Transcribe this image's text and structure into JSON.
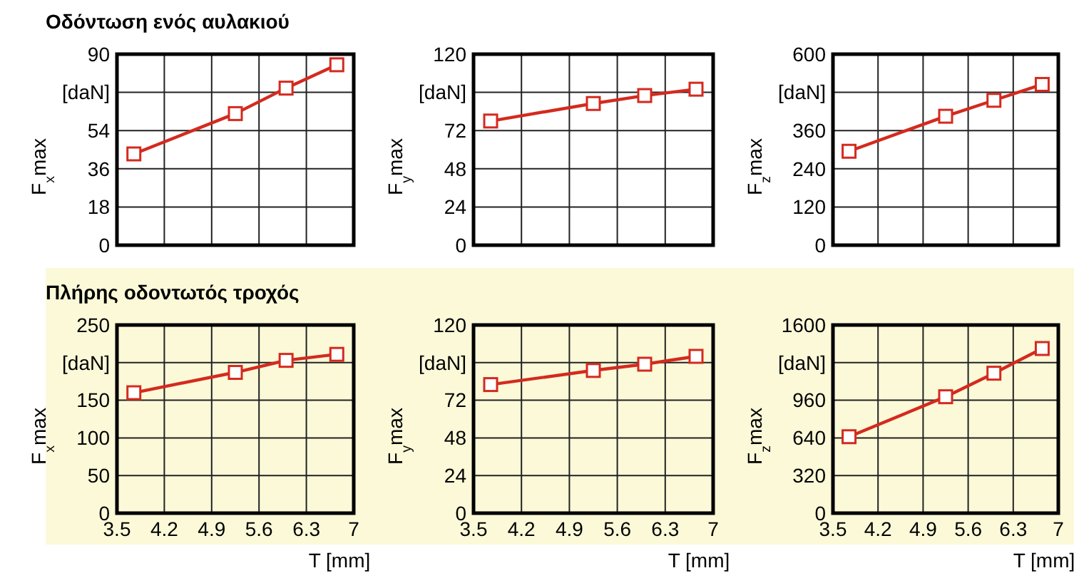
{
  "chart_data": [
    {
      "type": "line",
      "title": "Οδόντωση ενός αυλακιού",
      "ylabel": "F$_{x}$max",
      "x": [
        3.75,
        5.25,
        6.0,
        6.75
      ],
      "series": [
        {
          "color": "#d42a1f",
          "values": [
            43,
            62,
            74,
            85
          ]
        }
      ],
      "xlim": [
        3.5,
        7
      ],
      "xticks": [
        3.5,
        4.2,
        4.9,
        5.6,
        6.3,
        7
      ],
      "ylim": [
        0,
        90
      ],
      "yticks": [
        0,
        18,
        36,
        54,
        {
          "value": 72,
          "label": "[daN]"
        },
        90
      ],
      "grid": true,
      "marker": "square",
      "tick_labels": "y"
    },
    {
      "type": "line",
      "ylabel": "F$_{y}$max",
      "x": [
        3.75,
        5.25,
        6.0,
        6.75
      ],
      "series": [
        {
          "color": "#d42a1f",
          "values": [
            78,
            89,
            94,
            98
          ]
        }
      ],
      "xlim": [
        3.5,
        7
      ],
      "xticks": [
        3.5,
        4.2,
        4.9,
        5.6,
        6.3,
        7
      ],
      "ylim": [
        0,
        120
      ],
      "yticks": [
        0,
        24,
        48,
        72,
        {
          "value": 96,
          "label": "[daN]"
        },
        120
      ],
      "grid": true,
      "marker": "square",
      "tick_labels": "y"
    },
    {
      "type": "line",
      "ylabel": "F$_{z}$max",
      "x": [
        3.75,
        5.25,
        6.0,
        6.75
      ],
      "series": [
        {
          "color": "#d42a1f",
          "values": [
            295,
            405,
            455,
            505
          ]
        }
      ],
      "xlim": [
        3.5,
        7
      ],
      "xticks": [
        3.5,
        4.2,
        4.9,
        5.6,
        6.3,
        7
      ],
      "ylim": [
        0,
        600
      ],
      "yticks": [
        0,
        120,
        240,
        360,
        {
          "value": 480,
          "label": "[daN]"
        },
        600
      ],
      "grid": true,
      "marker": "square",
      "tick_labels": "y"
    },
    {
      "type": "line",
      "title": "Πλήρης οδοντωτός τροχός",
      "xlabel": "T [mm]",
      "ylabel": "F$_{x}$max",
      "x": [
        3.75,
        5.25,
        6.0,
        6.75
      ],
      "series": [
        {
          "color": "#d42a1f",
          "values": [
            160,
            187,
            203,
            211
          ]
        }
      ],
      "xlim": [
        3.5,
        7
      ],
      "xticks": [
        3.5,
        4.2,
        4.9,
        5.6,
        6.3,
        7
      ],
      "ylim": [
        0,
        250
      ],
      "yticks": [
        0,
        50,
        100,
        150,
        {
          "value": 200,
          "label": "[daN]"
        },
        250
      ],
      "grid": true,
      "marker": "square"
    },
    {
      "type": "line",
      "xlabel": "T [mm]",
      "ylabel": "F$_{y}$max",
      "x": [
        3.75,
        5.25,
        6.0,
        6.75
      ],
      "series": [
        {
          "color": "#d42a1f",
          "values": [
            82,
            91,
            95,
            100
          ]
        }
      ],
      "xlim": [
        3.5,
        7
      ],
      "xticks": [
        3.5,
        4.2,
        4.9,
        5.6,
        6.3,
        7
      ],
      "ylim": [
        0,
        120
      ],
      "yticks": [
        0,
        24,
        48,
        72,
        {
          "value": 96,
          "label": "[daN]"
        },
        120
      ],
      "grid": true,
      "marker": "square"
    },
    {
      "type": "line",
      "xlabel": "T [mm]",
      "ylabel": "F$_{z}$max",
      "x": [
        3.75,
        5.25,
        6.0,
        6.75
      ],
      "series": [
        {
          "color": "#d42a1f",
          "values": [
            650,
            990,
            1190,
            1400
          ]
        }
      ],
      "xlim": [
        3.5,
        7
      ],
      "xticks": [
        3.5,
        4.2,
        4.9,
        5.6,
        6.3,
        7
      ],
      "ylim": [
        0,
        1600
      ],
      "yticks": [
        0,
        320,
        640,
        960,
        {
          "value": 1280,
          "label": "[daN]"
        },
        1600
      ],
      "grid": true,
      "marker": "square"
    }
  ]
}
